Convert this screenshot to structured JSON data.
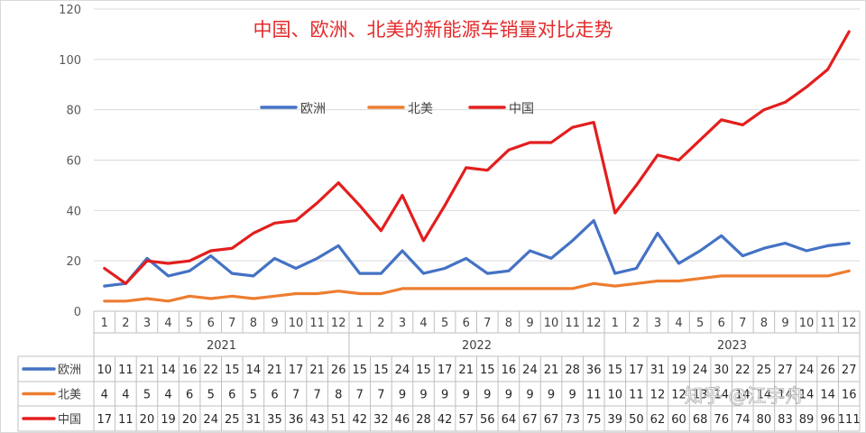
{
  "chart_data": {
    "type": "line",
    "title": "中国、欧洲、北美的新能源车销量对比走势",
    "title_color": "#e32b2b",
    "xlabel": "",
    "ylabel": "",
    "ylim": [
      0,
      120
    ],
    "yticks": [
      0,
      20,
      40,
      60,
      80,
      100,
      120
    ],
    "grid": true,
    "legend_position": "top-center",
    "x_months": [
      "1",
      "2",
      "3",
      "4",
      "5",
      "6",
      "7",
      "8",
      "9",
      "10",
      "11",
      "12",
      "1",
      "2",
      "3",
      "4",
      "5",
      "6",
      "7",
      "8",
      "9",
      "10",
      "11",
      "12",
      "1",
      "2",
      "3",
      "4",
      "5",
      "6",
      "7",
      "8",
      "9",
      "10",
      "11",
      "12"
    ],
    "x_years": [
      {
        "label": "2021",
        "months": 12
      },
      {
        "label": "2022",
        "months": 12
      },
      {
        "label": "2023",
        "months": 12
      }
    ],
    "series": [
      {
        "name": "欧洲",
        "color": "#4472c4",
        "values": [
          10,
          11,
          21,
          14,
          16,
          22,
          15,
          14,
          21,
          17,
          21,
          26,
          15,
          15,
          24,
          15,
          17,
          21,
          15,
          16,
          24,
          21,
          28,
          36,
          15,
          17,
          31,
          19,
          24,
          30,
          22,
          25,
          27,
          24,
          26,
          27
        ]
      },
      {
        "name": "北美",
        "color": "#ed7d31",
        "values": [
          4,
          4,
          5,
          4,
          6,
          5,
          6,
          5,
          6,
          7,
          7,
          8,
          7,
          7,
          9,
          9,
          9,
          9,
          9,
          9,
          9,
          9,
          9,
          11,
          10,
          11,
          12,
          12,
          13,
          14,
          14,
          14,
          14,
          14,
          14,
          16
        ]
      },
      {
        "name": "中国",
        "color": "#e31e1e",
        "values": [
          17,
          11,
          20,
          19,
          20,
          24,
          25,
          31,
          35,
          36,
          43,
          51,
          42,
          32,
          46,
          28,
          42,
          57,
          56,
          64,
          67,
          67,
          73,
          75,
          39,
          50,
          62,
          60,
          68,
          76,
          74,
          80,
          83,
          89,
          96,
          111
        ]
      }
    ]
  },
  "watermark": "知乎 @江宇舟"
}
